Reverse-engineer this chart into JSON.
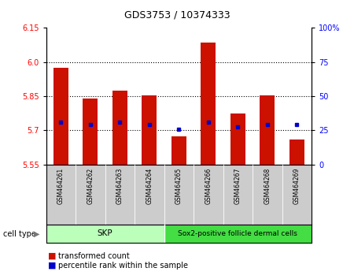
{
  "title": "GDS3753 / 10374333",
  "samples": [
    "GSM464261",
    "GSM464262",
    "GSM464263",
    "GSM464264",
    "GSM464265",
    "GSM464266",
    "GSM464267",
    "GSM464268",
    "GSM464269"
  ],
  "bar_tops": [
    5.975,
    5.84,
    5.875,
    5.855,
    5.675,
    6.085,
    5.775,
    5.855,
    5.66
  ],
  "bar_bottom": 5.55,
  "blue_dots": [
    5.735,
    5.725,
    5.735,
    5.725,
    5.705,
    5.735,
    5.715,
    5.725,
    5.725
  ],
  "bar_color": "#cc1100",
  "dot_color": "#0000cc",
  "ylim_left": [
    5.55,
    6.15
  ],
  "ylim_right": [
    0,
    100
  ],
  "yticks_left": [
    5.55,
    5.7,
    5.85,
    6.0,
    6.15
  ],
  "yticks_right": [
    0,
    25,
    50,
    75,
    100
  ],
  "hlines": [
    5.7,
    5.85,
    6.0
  ],
  "legend_items": [
    "transformed count",
    "percentile rank within the sample"
  ],
  "group1_color": "#bbffbb",
  "group2_color": "#44dd44",
  "label_bg": "#cccccc"
}
